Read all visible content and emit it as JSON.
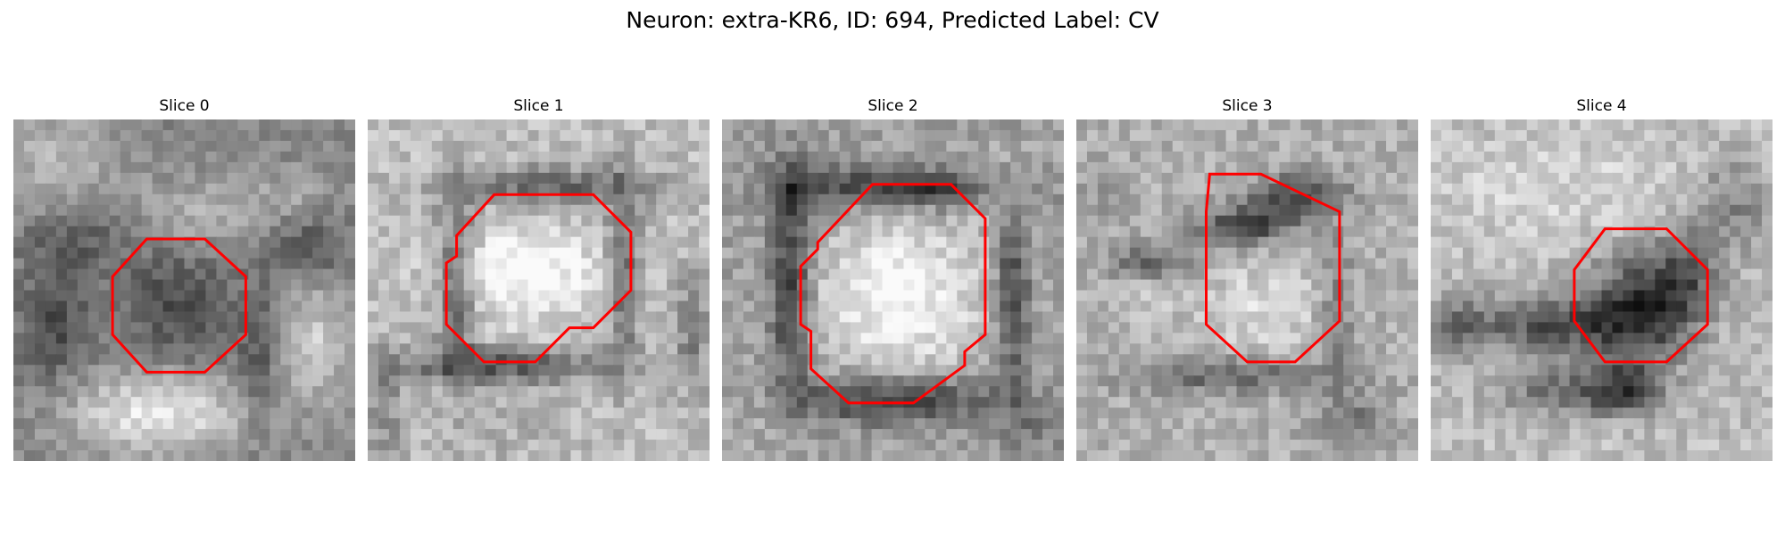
{
  "figure": {
    "title": "Neuron: extra-KR6, ID: 694, Predicted Label: CV"
  },
  "slices": [
    {
      "title": "Slice 0"
    },
    {
      "title": "Slice 1"
    },
    {
      "title": "Slice 2"
    },
    {
      "title": "Slice 3"
    },
    {
      "title": "Slice 4"
    }
  ],
  "colors": {
    "contour": "#ff0000",
    "background": "#ffffff"
  }
}
